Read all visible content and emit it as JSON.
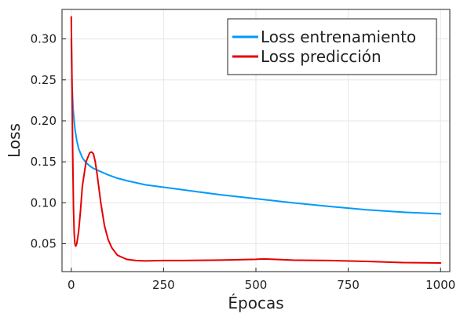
{
  "chart_data": {
    "type": "line",
    "xlabel": "Épocas",
    "ylabel": "Loss",
    "xlim": [
      -25,
      1025
    ],
    "ylim": [
      0.016,
      0.336
    ],
    "grid": true,
    "legend_position": "top-right",
    "x_ticks": [
      0,
      250,
      500,
      750,
      1000
    ],
    "y_ticks": [
      0.05,
      0.1,
      0.15,
      0.2,
      0.25,
      0.3
    ],
    "series": [
      {
        "name": "Loss entrenamiento",
        "color": "#009af9",
        "x": [
          0,
          2,
          5,
          10,
          15,
          20,
          30,
          40,
          50,
          60,
          70,
          80,
          100,
          125,
          150,
          200,
          250,
          300,
          400,
          500,
          600,
          700,
          800,
          900,
          1000
        ],
        "y": [
          0.3,
          0.245,
          0.215,
          0.19,
          0.176,
          0.166,
          0.155,
          0.149,
          0.145,
          0.142,
          0.14,
          0.138,
          0.134,
          0.13,
          0.127,
          0.122,
          0.119,
          0.116,
          0.11,
          0.105,
          0.1,
          0.0955,
          0.0915,
          0.0885,
          0.0865
        ]
      },
      {
        "name": "Loss predicción",
        "color": "#e60000",
        "x": [
          0,
          2,
          4,
          6,
          8,
          10,
          12,
          15,
          20,
          25,
          30,
          40,
          50,
          55,
          60,
          65,
          70,
          80,
          90,
          100,
          110,
          125,
          150,
          175,
          200,
          250,
          300,
          400,
          450,
          500,
          520,
          550,
          600,
          700,
          800,
          900,
          1000
        ],
        "y": [
          0.327,
          0.25,
          0.16,
          0.095,
          0.062,
          0.05,
          0.047,
          0.05,
          0.065,
          0.09,
          0.12,
          0.15,
          0.161,
          0.162,
          0.16,
          0.15,
          0.135,
          0.1,
          0.072,
          0.055,
          0.045,
          0.036,
          0.031,
          0.0295,
          0.029,
          0.0295,
          0.0295,
          0.03,
          0.0305,
          0.031,
          0.0315,
          0.031,
          0.03,
          0.0295,
          0.0285,
          0.027,
          0.0265
        ]
      }
    ]
  }
}
